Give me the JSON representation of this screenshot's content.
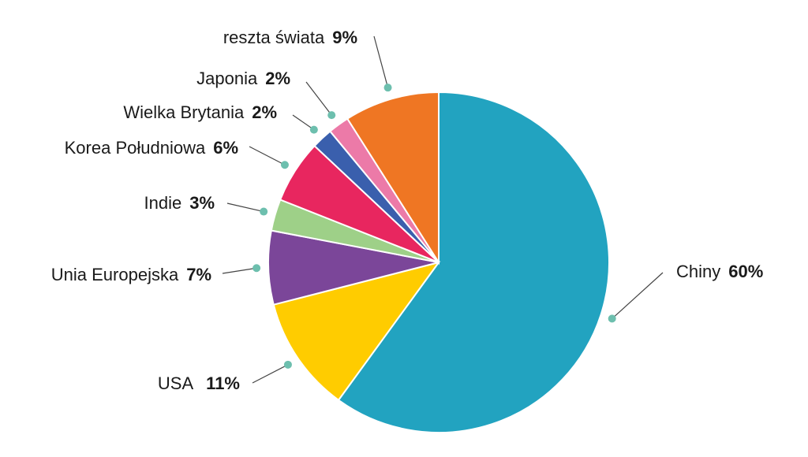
{
  "chart_data": {
    "type": "pie",
    "title": "",
    "start_angle_deg": 0,
    "direction": "clockwise",
    "slices": [
      {
        "name": "Chiny",
        "value": 60,
        "pct_label": "60%",
        "color": "#22a3c0"
      },
      {
        "name": "USA",
        "value": 11,
        "pct_label": "11%",
        "color": "#ffcc00"
      },
      {
        "name": "Unia Europejska",
        "value": 7,
        "pct_label": "7%",
        "color": "#7b4699"
      },
      {
        "name": "Indie",
        "value": 3,
        "pct_label": "3%",
        "color": "#9ed088"
      },
      {
        "name": "Korea Południowa",
        "value": 6,
        "pct_label": "6%",
        "color": "#e8265f"
      },
      {
        "name": "Wielka Brytania",
        "value": 2,
        "pct_label": "2%",
        "color": "#3a5fad"
      },
      {
        "name": "Japonia",
        "value": 2,
        "pct_label": "2%",
        "color": "#ec7aa8"
      },
      {
        "name": "reszta świata",
        "value": 9,
        "pct_label": "9%",
        "color": "#ef7623"
      }
    ],
    "leader_dot_color": "#6dbfae",
    "leader_line_color": "#444444"
  }
}
